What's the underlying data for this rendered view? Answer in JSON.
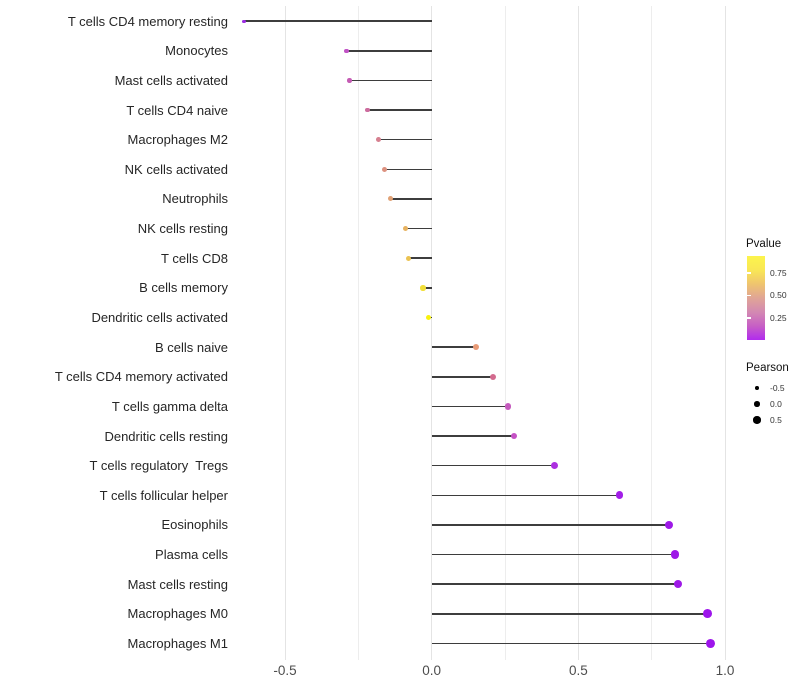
{
  "chart_data": {
    "type": "scatter",
    "variant": "lollipop",
    "title": "",
    "xlabel": "",
    "ylabel": "",
    "xlim": [
      -0.72,
      1.03
    ],
    "grid": "vertical-only",
    "grid_values": [
      -0.5,
      -0.25,
      0,
      0.25,
      0.5,
      0.75,
      1.0
    ],
    "xticks": {
      "values": [
        -0.5,
        0.0,
        0.5,
        1.0
      ],
      "labels": [
        "-0.5",
        "0.0",
        "0.5",
        "1.0"
      ]
    },
    "categories": [
      "T cells CD4 memory resting",
      "Monocytes",
      "Mast cells activated",
      "T cells CD4 naive",
      "Macrophages M2",
      "NK cells activated",
      "Neutrophils",
      "NK cells resting",
      "T cells CD8",
      "B cells memory",
      "Dendritic cells activated",
      "B cells naive",
      "T cells CD4 memory activated",
      "T cells gamma delta",
      "Dendritic cells resting",
      "T cells regulatory  Tregs",
      "T cells follicular helper",
      "Eosinophils",
      "Plasma cells",
      "Mast cells resting",
      "Macrophages M0",
      "Macrophages M1"
    ],
    "series": [
      {
        "name": "Pearson",
        "values": [
          -0.64,
          -0.29,
          -0.28,
          -0.22,
          -0.18,
          -0.16,
          -0.14,
          -0.09,
          -0.08,
          -0.03,
          -0.01,
          0.15,
          0.21,
          0.26,
          0.28,
          0.42,
          0.64,
          0.81,
          0.83,
          0.84,
          0.94,
          0.95
        ]
      }
    ],
    "point_colors": [
      "#9B2BE3",
      "#C153C5",
      "#C55BB4",
      "#CC6C9E",
      "#D68090",
      "#DC917F",
      "#E0A175",
      "#E7B260",
      "#EBC352",
      "#F2DF3A",
      "#F9F20D",
      "#E99B77",
      "#D36A8E",
      "#C55BBE",
      "#C452C4",
      "#AC30E0",
      "#A21EE8",
      "#9E19E7",
      "#9E19E7",
      "#9E19E7",
      "#9D15EB",
      "#9D15EB"
    ],
    "stem_color": "#3d3d3d",
    "legend_pvalue": {
      "title": "Pvalue",
      "tick_labels": [
        "0.75",
        "0.50",
        "0.25"
      ],
      "tick_fracs_from_top": [
        0.202,
        0.47,
        0.738
      ],
      "gradient_bottom_to_top": [
        "#B12BEE",
        "#C75FC5",
        "#D389B2",
        "#E0A596",
        "#EFC46F",
        "#F9E755",
        "#FCF44C"
      ]
    },
    "legend_pearson": {
      "title": "Pearson",
      "dot_color": "#000000",
      "items": [
        {
          "label": "-0.5",
          "diameter": 3.7
        },
        {
          "label": "0.0",
          "diameter": 5.5
        },
        {
          "label": "0.5",
          "diameter": 7.3
        }
      ]
    }
  }
}
